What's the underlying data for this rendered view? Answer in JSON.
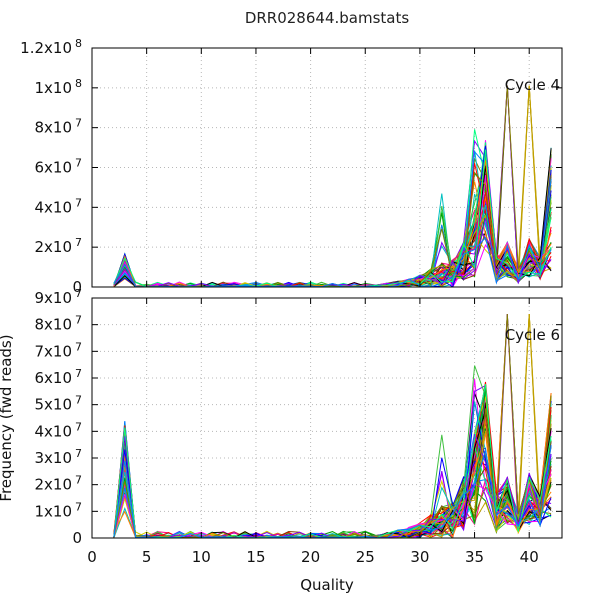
{
  "chart_data": {
    "type": "line",
    "title": "DRR028644.bamstats",
    "xlabel": "Quality",
    "ylabel": "Frequency (fwd reads)",
    "xlim": [
      0,
      43
    ],
    "x_ticks": [
      "0",
      "5",
      "10",
      "15",
      "20",
      "25",
      "30",
      "35",
      "40"
    ],
    "x_tick_values": [
      0,
      5,
      10,
      15,
      20,
      25,
      30,
      35,
      40
    ],
    "grid": true,
    "panels": [
      {
        "label": "Cycle 4",
        "ylim": [
          0,
          120000000
        ],
        "y_tick_values": [
          0,
          20000000,
          40000000,
          60000000,
          80000000,
          100000000,
          120000000
        ],
        "y_ticks": [
          {
            "mantissa": "0",
            "exp": ""
          },
          {
            "mantissa": "2x10",
            "exp": "7"
          },
          {
            "mantissa": "4x10",
            "exp": "7"
          },
          {
            "mantissa": "6x10",
            "exp": "7"
          },
          {
            "mantissa": "8x10",
            "exp": "7"
          },
          {
            "mantissa": "1x10",
            "exp": "8"
          },
          {
            "mantissa": "1.2x10",
            "exp": "8"
          }
        ],
        "peaks": {
          "q3": 17000000,
          "q32": 47000000,
          "q35": 84000000,
          "q36": 75000000,
          "q38": 101000000,
          "q40": 101000000,
          "q42": 70000000
        }
      },
      {
        "label": "Cycle 6",
        "ylim": [
          0,
          90000000
        ],
        "y_tick_values": [
          0,
          10000000,
          20000000,
          30000000,
          40000000,
          50000000,
          60000000,
          70000000,
          80000000,
          90000000
        ],
        "y_ticks": [
          {
            "mantissa": "0",
            "exp": ""
          },
          {
            "mantissa": "1x10",
            "exp": "7"
          },
          {
            "mantissa": "2x10",
            "exp": "7"
          },
          {
            "mantissa": "3x10",
            "exp": "7"
          },
          {
            "mantissa": "4x10",
            "exp": "7"
          },
          {
            "mantissa": "5x10",
            "exp": "7"
          },
          {
            "mantissa": "6x10",
            "exp": "7"
          },
          {
            "mantissa": "7x10",
            "exp": "7"
          },
          {
            "mantissa": "8x10",
            "exp": "7"
          },
          {
            "mantissa": "9x10",
            "exp": "7"
          }
        ],
        "peaks": {
          "q3": 44000000,
          "q32": 46000000,
          "q35": 65000000,
          "q36": 59000000,
          "q38": 84000000,
          "q40": 84000000,
          "q42": 55000000
        }
      }
    ],
    "palette": [
      "#ff0000",
      "#00a000",
      "#0000ff",
      "#ff00ff",
      "#00c0c0",
      "#c0a000",
      "#000000",
      "#ff8000",
      "#8000ff",
      "#808000",
      "#00ff80",
      "#0080ff",
      "#804000",
      "#ff0080",
      "#40c040",
      "#d0d000"
    ]
  }
}
